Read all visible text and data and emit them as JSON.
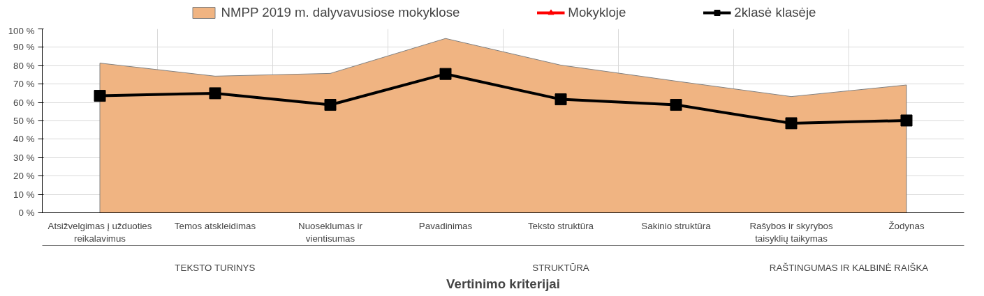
{
  "chart_data": {
    "type": "line",
    "xlabel": "Vertinimo kriterijai",
    "categories": [
      "Atsižvelgimas į užduoties reikalavimus",
      "Temos atskleidimas",
      "Nuoseklumas ir vientisumas",
      "Pavadinimas",
      "Teksto struktūra",
      "Sakinio struktūra",
      "Rašybos ir skyrybos taisyklių taikymas",
      "Žodynas"
    ],
    "series": [
      {
        "name": "NMPP 2019 m. dalyvavusiose mokyklose",
        "type": "area",
        "color": "#f0b482",
        "values": [
          81.4,
          74.3,
          75.8,
          94.8,
          80.3,
          71.6,
          63.2,
          69.5
        ]
      },
      {
        "name": "Mokykloje",
        "color": "#ff0000",
        "marker": "triangle",
        "values": [
          null,
          null,
          null,
          null,
          null,
          null,
          null,
          null
        ]
      },
      {
        "name": "2klasė klasėje",
        "color": "#000000",
        "marker": "square",
        "values": [
          63.6,
          65,
          58.7,
          75.5,
          61.7,
          58.7,
          48.7,
          50.2
        ]
      }
    ],
    "annotations": [
      "TEKSTO TURINYS",
      "STRUKTŪRA",
      "RAŠTINGUMAS IR KALBINĖ RAIŠKA"
    ],
    "ylim": [
      0,
      100
    ],
    "yticks": [
      {
        "value": 0,
        "label": "0 %"
      },
      {
        "value": 10,
        "label": "10 %"
      },
      {
        "value": 20,
        "label": "20 %"
      },
      {
        "value": 30,
        "label": "30 %"
      },
      {
        "value": 40,
        "label": "40 %"
      },
      {
        "value": 50,
        "label": "50 %"
      },
      {
        "value": 60,
        "label": "60 %"
      },
      {
        "value": 70,
        "label": "70 %"
      },
      {
        "value": 80,
        "label": "80 %"
      },
      {
        "value": 90,
        "label": "90 %"
      },
      {
        "value": 100,
        "label": "100 %"
      }
    ],
    "grid": true,
    "legend": "top"
  }
}
